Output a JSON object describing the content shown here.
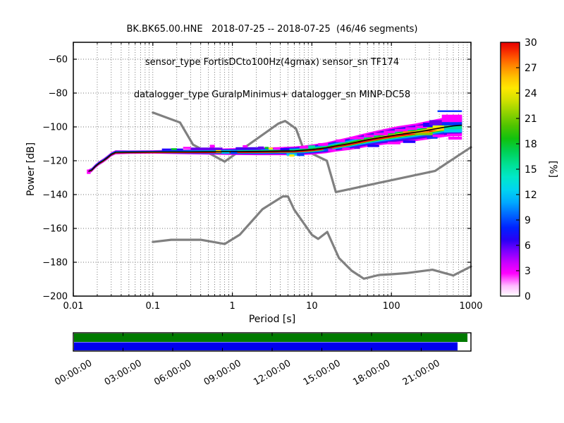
{
  "title": {
    "line1": "BK.BK65.00.HNE   2018-07-25 -- 2018-07-25  (46/46 segments)",
    "line2": "sensor_type FortisDCto100Hz(4gmax) sensor_sn TF174",
    "line3": "datalogger_type GuralpMinimus+ datalogger_sn MINP-DC58"
  },
  "chart_data": {
    "type": "heatmap",
    "xlabel": "Period [s]",
    "ylabel": "Power [dB]",
    "x_scale": "log",
    "xlim": [
      0.01,
      1000
    ],
    "ylim": [
      -200,
      -50
    ],
    "grid": true,
    "x_tick_labels": [
      "0.01",
      "0.1",
      "1",
      "10",
      "100",
      "1000"
    ],
    "y_ticks": [
      -60,
      -80,
      -100,
      -120,
      -140,
      -160,
      -180,
      -200
    ],
    "colorbar": {
      "label": "[%]",
      "range": [
        0,
        30
      ],
      "ticks": [
        "0",
        "3",
        "6",
        "9",
        "12",
        "15",
        "18",
        "21",
        "24",
        "27",
        "30"
      ],
      "gradient_stops": [
        [
          0.0,
          "#ffffff"
        ],
        [
          0.04,
          "#ffbbff"
        ],
        [
          0.09,
          "#ff00ff"
        ],
        [
          0.13,
          "#cc00ff"
        ],
        [
          0.18,
          "#7700ff"
        ],
        [
          0.22,
          "#2a00f5"
        ],
        [
          0.27,
          "#0022ff"
        ],
        [
          0.32,
          "#0066ff"
        ],
        [
          0.37,
          "#00aaff"
        ],
        [
          0.42,
          "#00d5f0"
        ],
        [
          0.47,
          "#00e8c8"
        ],
        [
          0.52,
          "#00e092"
        ],
        [
          0.57,
          "#00d055"
        ],
        [
          0.62,
          "#11c20e"
        ],
        [
          0.67,
          "#4ec400"
        ],
        [
          0.72,
          "#8ed200"
        ],
        [
          0.77,
          "#cfe000"
        ],
        [
          0.82,
          "#ffe800"
        ],
        [
          0.86,
          "#ffc400"
        ],
        [
          0.9,
          "#ff9000"
        ],
        [
          0.94,
          "#ff5500"
        ],
        [
          0.97,
          "#f52500"
        ],
        [
          1.0,
          "#e60000"
        ]
      ]
    },
    "noise_models": {
      "color": "#808080",
      "nhnm": [
        [
          0.1,
          -91.5
        ],
        [
          0.22,
          -97.4
        ],
        [
          0.32,
          -110.5
        ],
        [
          0.8,
          -120.5
        ],
        [
          3.8,
          -98.0
        ],
        [
          4.6,
          -96.5
        ],
        [
          6.3,
          -101.0
        ],
        [
          7.9,
          -113.5
        ],
        [
          15.4,
          -120.0
        ],
        [
          20,
          -138.5
        ],
        [
          354.8,
          -126.0
        ],
        [
          1000,
          -112.0
        ]
      ],
      "nlnm": [
        [
          0.1,
          -168.0
        ],
        [
          0.17,
          -166.7
        ],
        [
          0.4,
          -166.7
        ],
        [
          0.8,
          -169.2
        ],
        [
          1.24,
          -163.7
        ],
        [
          2.4,
          -148.6
        ],
        [
          4.3,
          -141.1
        ],
        [
          5,
          -141.1
        ],
        [
          6,
          -149.0
        ],
        [
          10,
          -163.8
        ],
        [
          12,
          -166.2
        ],
        [
          15.6,
          -162.1
        ],
        [
          21.9,
          -177.5
        ],
        [
          31.6,
          -185.0
        ],
        [
          45,
          -189.7
        ],
        [
          70,
          -187.5
        ],
        [
          101,
          -187.1
        ],
        [
          154,
          -186.4
        ],
        [
          328,
          -184.4
        ],
        [
          600,
          -187.8
        ],
        [
          1000,
          -182.5
        ]
      ]
    },
    "psd_distribution": {
      "periods": [
        0.0155,
        0.017,
        0.019,
        0.021,
        0.024,
        0.027,
        0.03,
        0.034,
        0.05,
        0.1,
        0.3,
        1,
        2,
        4,
        6,
        8,
        10,
        15,
        20,
        30,
        50,
        80,
        120,
        200,
        300,
        450,
        600,
        770
      ],
      "mode_db": [
        -126.3,
        -125.5,
        -123.2,
        -121.5,
        -119.8,
        -118.0,
        -116.2,
        -115.0,
        -114.9,
        -114.8,
        -114.7,
        -114.6,
        -114.5,
        -114.3,
        -114.2,
        -113.8,
        -113.4,
        -112.4,
        -111.2,
        -109.8,
        -107.6,
        -105.9,
        -104.6,
        -103.2,
        -101.8,
        -100.3,
        -99.4,
        -99.0
      ],
      "halfwidth_db": [
        1.2,
        1.2,
        1.2,
        1.2,
        1.2,
        1.2,
        1.2,
        1.2,
        1.0,
        1.0,
        1.5,
        2.0,
        2.2,
        2.4,
        2.6,
        2.8,
        3.0,
        3.2,
        3.4,
        3.8,
        4.2,
        4.6,
        5.0,
        5.2,
        5.5,
        5.7,
        5.9,
        6.0
      ],
      "layers": [
        {
          "color": "#ff00ff",
          "frac": 1.0,
          "shift": 0
        },
        {
          "color": "#5500ee",
          "frac": 0.8,
          "shift": 0
        },
        {
          "color": "#0055ff",
          "frac": 0.62,
          "shift": 0
        },
        {
          "color": "#00ccee",
          "frac": 0.47,
          "shift": -0.1
        },
        {
          "color": "#00cc22",
          "frac": 0.34,
          "shift": -0.2
        },
        {
          "color": "#ffee00",
          "frac": 0.22,
          "shift": -0.35
        },
        {
          "color": "#ee0000",
          "frac": 0.13,
          "shift": -0.55
        }
      ],
      "mode_line_color": "#000000"
    },
    "outlier_patches": [
      [
        0.0148,
        0.0165,
        -125.2,
        -127.8,
        "#ff00ff"
      ],
      [
        0.13,
        0.24,
        -112.8,
        -114.0,
        "#2200ff"
      ],
      [
        0.17,
        0.2,
        -112.6,
        -113.7,
        "#00cc22"
      ],
      [
        0.24,
        0.3,
        -111.8,
        -113.0,
        "#ff00ff"
      ],
      [
        0.3,
        0.75,
        -112.2,
        -113.8,
        "#6600ee"
      ],
      [
        0.52,
        0.6,
        -110.6,
        -112.3,
        "#ff00ff"
      ],
      [
        0.62,
        0.72,
        -113.7,
        -115.2,
        "#ffee00"
      ],
      [
        0.73,
        0.92,
        -114.6,
        -115.8,
        "#00ccee"
      ],
      [
        0.95,
        1.15,
        -114.0,
        -115.6,
        "#0044ff"
      ],
      [
        1.1,
        2.3,
        -112.0,
        -113.6,
        "#4400ee"
      ],
      [
        1.35,
        1.55,
        -110.8,
        -112.2,
        "#ff00ff"
      ],
      [
        2.1,
        2.5,
        -111.6,
        -113.2,
        "#6600ee"
      ],
      [
        2.55,
        2.85,
        -111.8,
        -113.0,
        "#00cc22"
      ],
      [
        2.85,
        3.25,
        -112.2,
        -113.4,
        "#ffee00"
      ],
      [
        3.3,
        4.4,
        -112.1,
        -113.5,
        "#ff00ff"
      ],
      [
        4.0,
        5.2,
        -112.5,
        -113.8,
        "#2200ff"
      ],
      [
        4.8,
        6.5,
        -115.7,
        -117.0,
        "#00ccee"
      ],
      [
        5.2,
        6.0,
        -116.3,
        -117.6,
        "#ffee00"
      ],
      [
        6.5,
        8.0,
        -115.9,
        -117.2,
        "#0044ff"
      ],
      [
        7.0,
        9.0,
        -111.4,
        -112.8,
        "#ff00ff"
      ],
      [
        9.0,
        11.0,
        -110.9,
        -112.3,
        "#00dd99"
      ],
      [
        12,
        16,
        -109.6,
        -111.2,
        "#ff00ff"
      ],
      [
        14,
        18,
        -112.7,
        -114.0,
        "#0044ff"
      ],
      [
        16,
        20,
        -113.1,
        -114.4,
        "#ff00ff"
      ],
      [
        20,
        26,
        -107.4,
        -109.0,
        "#ff00ff"
      ],
      [
        24,
        30,
        -112.2,
        -113.6,
        "#ff00ff"
      ],
      [
        30,
        45,
        -105.8,
        -107.4,
        "#ff00ff"
      ],
      [
        34,
        40,
        -111.5,
        -113.0,
        "#6600ee"
      ],
      [
        45,
        60,
        -104.6,
        -106.2,
        "#ff00ff"
      ],
      [
        50,
        70,
        -110.4,
        -111.9,
        "#2200ff"
      ],
      [
        60,
        90,
        -103.4,
        -105.0,
        "#ff00ff"
      ],
      [
        80,
        110,
        -102.2,
        -103.8,
        "#ff00ff"
      ],
      [
        90,
        130,
        -108.8,
        -110.3,
        "#ff00ff"
      ],
      [
        110,
        160,
        -101.2,
        -102.8,
        "#ff00ff"
      ],
      [
        140,
        200,
        -108.0,
        -109.5,
        "#2200ff"
      ],
      [
        140,
        300,
        -102.6,
        -104.2,
        "#ff8800"
      ],
      [
        150,
        210,
        -100.2,
        -101.8,
        "#ff00ff"
      ],
      [
        200,
        330,
        -103.6,
        -104.9,
        "#88cc00"
      ],
      [
        200,
        280,
        -99.2,
        -100.8,
        "#ff00ff"
      ],
      [
        250,
        330,
        -97.5,
        -100.0,
        "#2200ff"
      ],
      [
        280,
        380,
        -105.5,
        -107.0,
        "#0044ff"
      ],
      [
        280,
        460,
        -100.4,
        -102.2,
        "#ffcc00"
      ],
      [
        300,
        440,
        -96.0,
        -99.0,
        "#6600ee"
      ],
      [
        330,
        460,
        -104.5,
        -106.0,
        "#ff00ff"
      ],
      [
        330,
        500,
        -99.2,
        -100.6,
        "#ffee00"
      ],
      [
        380,
        770,
        -90.2,
        -91.2,
        "#0033ff"
      ],
      [
        430,
        770,
        -92.8,
        -97.2,
        "#ff00ff"
      ],
      [
        430,
        770,
        -97.2,
        -99.1,
        "#0033ff"
      ],
      [
        460,
        770,
        -99.3,
        -101.3,
        "#00dd99"
      ],
      [
        460,
        770,
        -101.3,
        -103.3,
        "#00ccee"
      ],
      [
        500,
        770,
        -104.0,
        -105.5,
        "#ff00ff"
      ],
      [
        520,
        770,
        -105.8,
        -107.5,
        "#ff00ff"
      ]
    ],
    "timeline": {
      "labels": [
        "00:00:00",
        "03:00:00",
        "06:00:00",
        "09:00:00",
        "12:00:00",
        "15:00:00",
        "18:00:00",
        "21:00:00"
      ],
      "extent_color": "#007a00",
      "coverage_color": "#0000ee",
      "extent_fraction": 0.993,
      "coverage_fraction": 0.968
    }
  }
}
